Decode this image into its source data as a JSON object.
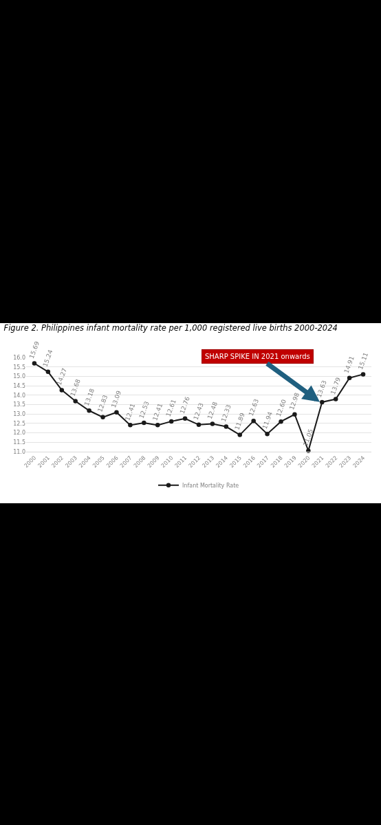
{
  "chart_data": {
    "type": "line",
    "title": "Figure 2. Philippines infant mortality rate per 1,000 registered live births 2000-2024",
    "categories": [
      "2000",
      "2001",
      "2002",
      "2003",
      "2004",
      "2005",
      "2006",
      "2007",
      "2008",
      "2009",
      "2010",
      "2011",
      "2012",
      "2013",
      "2014",
      "2015",
      "2016",
      "2017",
      "2018",
      "2019",
      "2020",
      "2021",
      "2022",
      "2023",
      "2024"
    ],
    "series": [
      {
        "name": "Infant Mortality Rate",
        "color": "#1a1a1a",
        "values": [
          15.69,
          15.24,
          14.27,
          13.68,
          13.18,
          12.83,
          13.09,
          12.41,
          12.53,
          12.41,
          12.61,
          12.76,
          12.43,
          12.48,
          12.33,
          11.89,
          12.63,
          11.94,
          12.6,
          12.98,
          11.05,
          13.63,
          13.79,
          14.91,
          15.11
        ],
        "value_labels": [
          "15.69",
          "15.24",
          "14.27",
          "13.68",
          "13.18",
          "12.83",
          "13.09",
          "12.41",
          "12.53",
          "12.41",
          "12.61",
          "12.76",
          "12.43",
          "12.48",
          "12.33",
          "11.89",
          "12.63",
          "11.94",
          "12.60",
          "12.98",
          "11.05",
          "13.63",
          "13.79",
          "14.91",
          "15.11"
        ]
      }
    ],
    "ylim": [
      11,
      16
    ],
    "yticks": [
      {
        "value": 11,
        "label": "11.0"
      },
      {
        "value": 11.5,
        "label": "11.5"
      },
      {
        "value": 12,
        "label": "12.0"
      },
      {
        "value": 12.5,
        "label": "12.5"
      },
      {
        "value": 13,
        "label": "13.0"
      },
      {
        "value": 13.5,
        "label": "13.5"
      },
      {
        "value": 14,
        "label": "14.0"
      },
      {
        "value": 14.5,
        "label": "14.5"
      },
      {
        "value": 15,
        "label": "15.0"
      },
      {
        "value": 15.5,
        "label": "15.5"
      },
      {
        "value": 16,
        "label": "16.0"
      }
    ],
    "grid": "y",
    "legend": "bottom",
    "marker": "circle",
    "line_style": "solid",
    "annotations": [
      {
        "text": "SHARP SPIKE IN 2021 onwards",
        "x": "2021",
        "y": 13.55
      }
    ]
  }
}
